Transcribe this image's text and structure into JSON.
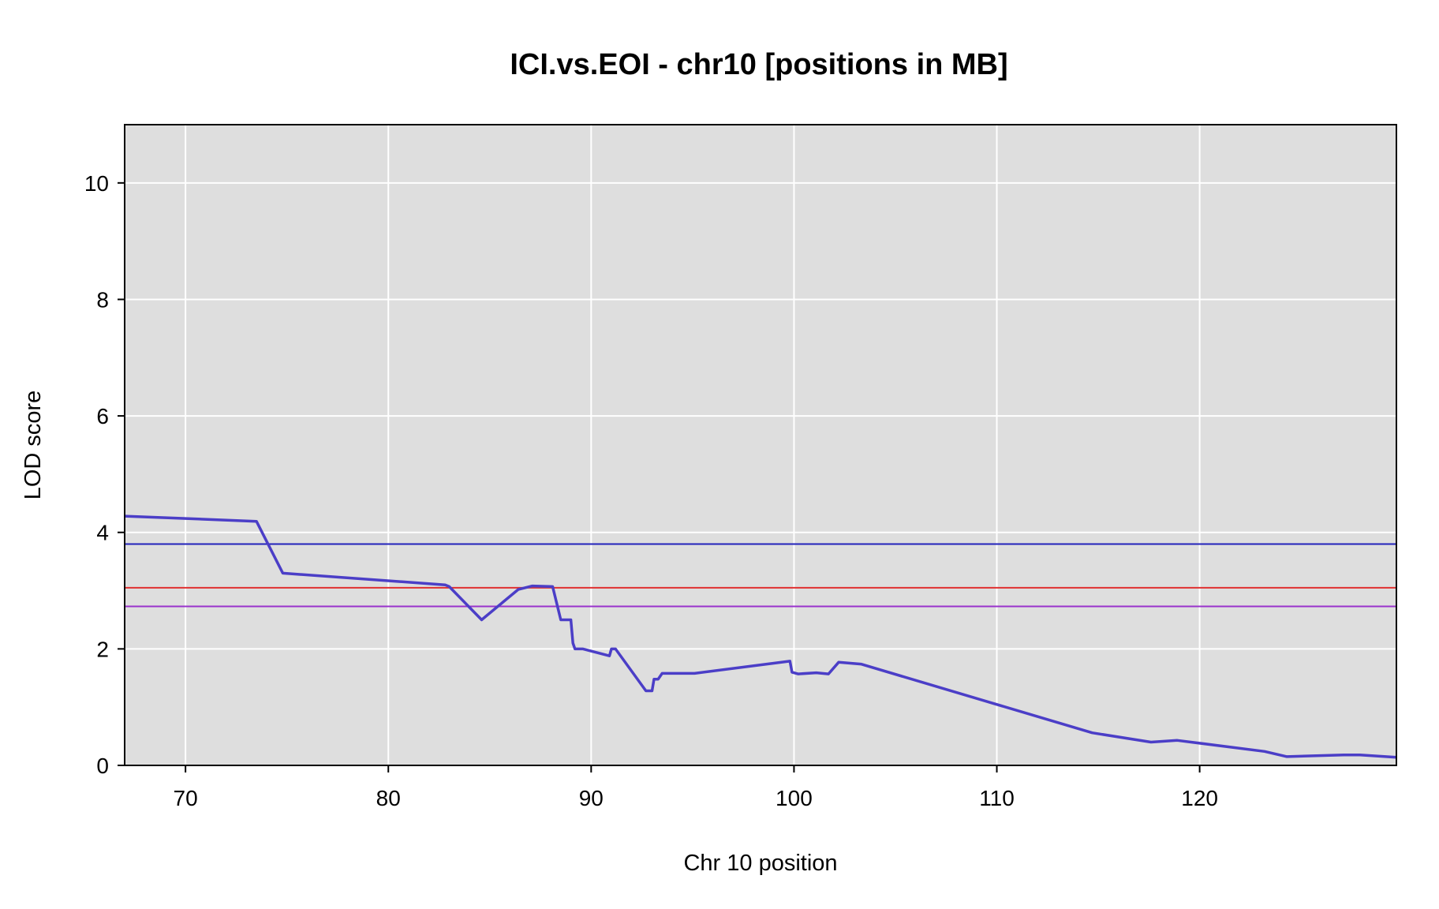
{
  "chart_data": {
    "type": "line",
    "title": "ICI.vs.EOI - chr10 [positions in MB]",
    "xlabel": "Chr 10 position",
    "ylabel": "LOD score",
    "xlim": [
      67,
      129.7
    ],
    "ylim": [
      0,
      11
    ],
    "x_ticks": [
      70,
      80,
      90,
      100,
      110,
      120
    ],
    "y_ticks": [
      0,
      2,
      4,
      6,
      8,
      10
    ],
    "grid": true,
    "colors": {
      "panel_background": "#dedede",
      "series": "#4b3ec7",
      "threshold_blue": "#2222bb",
      "threshold_red": "#e03030",
      "threshold_purple": "#9933cc"
    },
    "thresholds": [
      {
        "value": 3.8,
        "color": "#2222bb"
      },
      {
        "value": 3.05,
        "color": "#e03030"
      },
      {
        "value": 2.73,
        "color": "#9933cc"
      }
    ],
    "series": [
      {
        "x": [
          67.0,
          73.5,
          74.8,
          82.8,
          83.0,
          84.6,
          86.4,
          87.1,
          88.1,
          88.5,
          88.6,
          89.0,
          89.1,
          89.2,
          89.6,
          90.9,
          91.0,
          91.2,
          92.7,
          93.0,
          93.1,
          93.3,
          93.5,
          95.1,
          99.8,
          99.9,
          100.2,
          101.1,
          101.7,
          102.2,
          103.3,
          114.7,
          117.6,
          118.9,
          123.2,
          124.3,
          127.1,
          127.9,
          129.7
        ],
        "values": [
          4.28,
          4.19,
          3.3,
          3.1,
          3.07,
          2.5,
          3.02,
          3.08,
          3.07,
          2.5,
          2.5,
          2.5,
          2.1,
          2.0,
          2.0,
          1.88,
          2.0,
          2.0,
          1.28,
          1.28,
          1.48,
          1.48,
          1.58,
          1.58,
          1.79,
          1.6,
          1.57,
          1.59,
          1.57,
          1.77,
          1.74,
          0.56,
          0.4,
          0.43,
          0.24,
          0.15,
          0.18,
          0.18,
          0.14
        ]
      }
    ]
  }
}
